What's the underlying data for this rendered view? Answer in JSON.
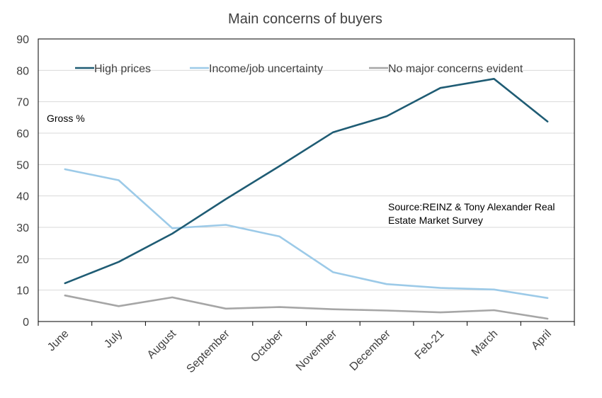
{
  "chart_data": {
    "type": "line",
    "title": "Main concerns of buyers",
    "ylabel": "",
    "xlabel": "",
    "unit_label": "Gross %",
    "source_note": [
      "Source:REINZ & Tony Alexander Real",
      "Estate Market Survey"
    ],
    "categories": [
      "June",
      "July",
      "August",
      "September",
      "October",
      "November",
      "December",
      "Feb-21",
      "March",
      "April"
    ],
    "ylim": [
      0,
      90
    ],
    "yticks": [
      0,
      10,
      20,
      30,
      40,
      50,
      60,
      70,
      80,
      90
    ],
    "grid": true,
    "legend_position": "top",
    "series": [
      {
        "name": "High prices",
        "color": "#1f5c74",
        "values": [
          12.2,
          19.0,
          28.0,
          39.0,
          49.5,
          60.3,
          65.4,
          74.4,
          77.3,
          63.7
        ]
      },
      {
        "name": "Income/job uncertainty",
        "color": "#9ccae8",
        "values": [
          48.5,
          45.0,
          29.7,
          30.8,
          27.1,
          15.7,
          11.9,
          10.7,
          10.2,
          7.5
        ]
      },
      {
        "name": "No major concerns evident",
        "color": "#a6a6a6",
        "values": [
          8.3,
          4.9,
          7.7,
          4.1,
          4.6,
          3.9,
          3.5,
          2.9,
          3.6,
          0.9
        ]
      }
    ]
  }
}
